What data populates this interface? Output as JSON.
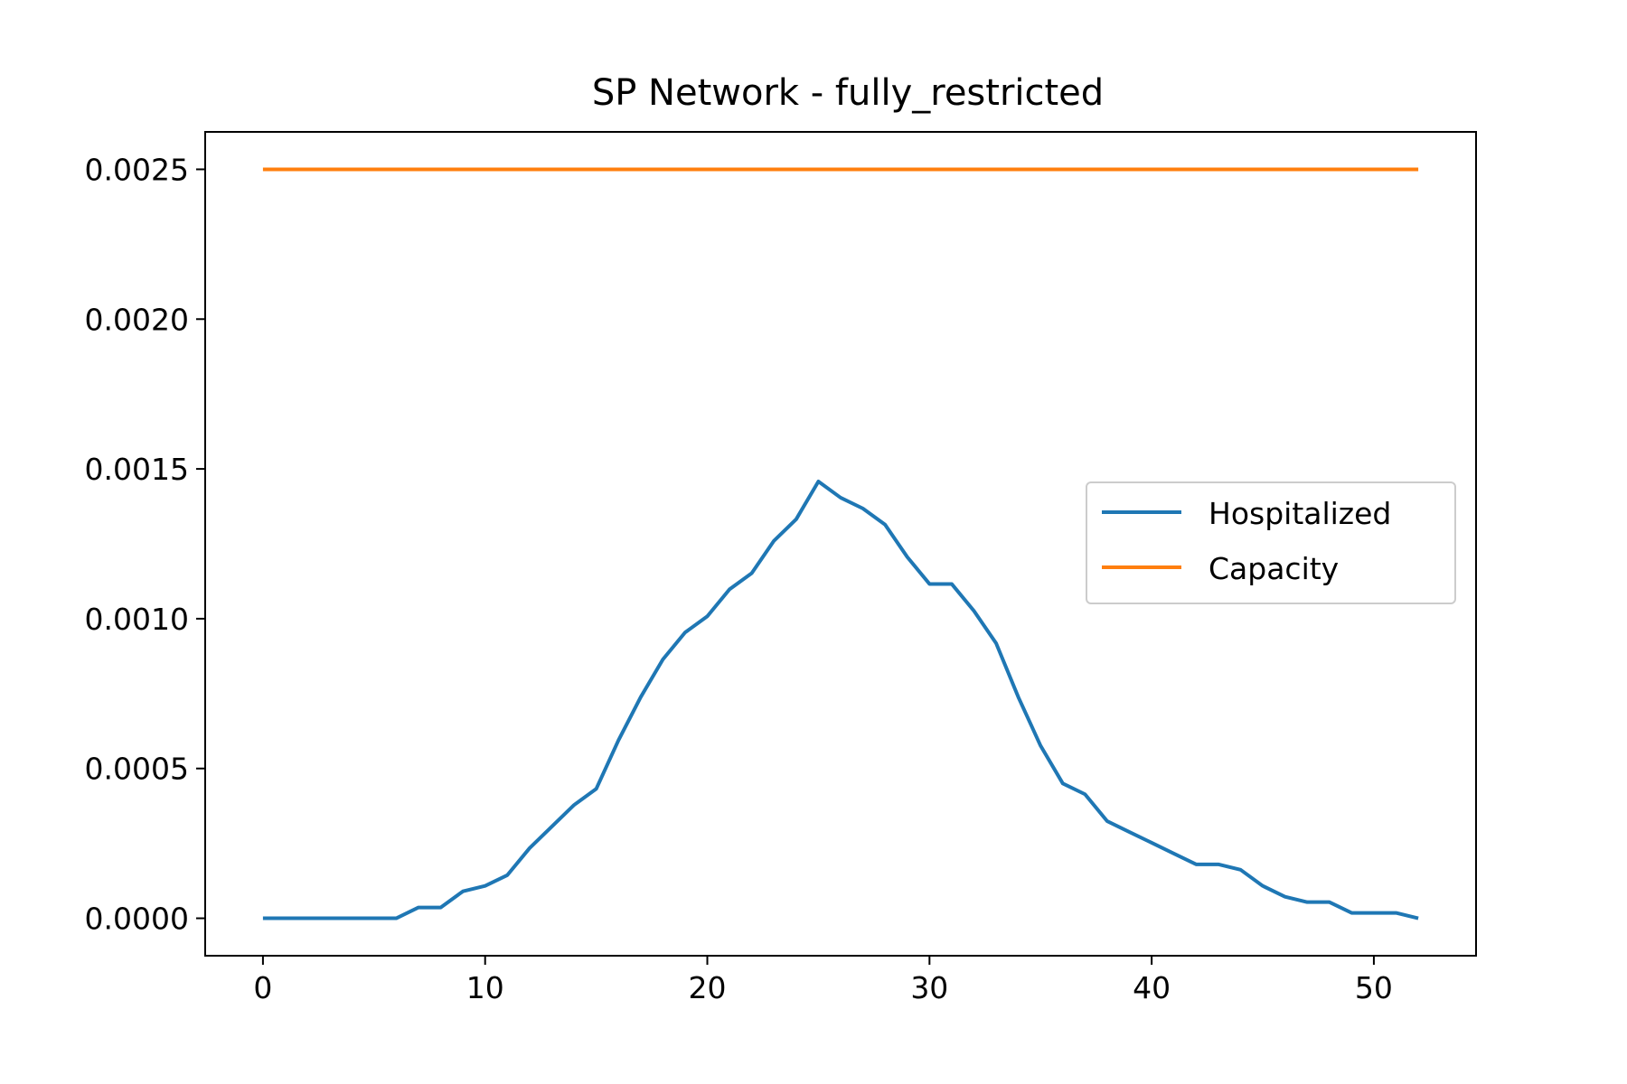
{
  "chart_data": {
    "type": "line",
    "title": "SP Network - fully_restricted",
    "xlabel": "",
    "ylabel": "",
    "xlim": [
      -2.6,
      54.6
    ],
    "ylim": [
      -0.000125,
      0.002625
    ],
    "x_ticks": [
      0,
      10,
      20,
      30,
      40,
      50
    ],
    "x_tick_labels": [
      "0",
      "10",
      "20",
      "30",
      "40",
      "50"
    ],
    "y_ticks": [
      0,
      0.0005,
      0.001,
      0.0015,
      0.002,
      0.0025
    ],
    "y_tick_labels": [
      "0.0000",
      "0.0005",
      "0.0010",
      "0.0015",
      "0.0020",
      "0.0025"
    ],
    "grid": false,
    "legend_position": "center-right",
    "x": [
      0,
      1,
      2,
      3,
      4,
      5,
      6,
      7,
      8,
      9,
      10,
      11,
      12,
      13,
      14,
      15,
      16,
      17,
      18,
      19,
      20,
      21,
      22,
      23,
      24,
      25,
      26,
      27,
      28,
      29,
      30,
      31,
      32,
      33,
      34,
      35,
      36,
      37,
      38,
      39,
      40,
      41,
      42,
      43,
      44,
      45,
      46,
      47,
      48,
      49,
      50,
      51,
      52
    ],
    "series": [
      {
        "name": "Hospitalized",
        "color": "#1f77b4",
        "values": [
          0,
          0,
          0,
          0,
          0,
          0,
          0,
          3.6e-05,
          3.6e-05,
          9e-05,
          0.000108,
          0.000144,
          0.000234,
          0.000306,
          0.000378,
          0.000432,
          0.000594,
          0.000738,
          0.000864,
          0.000954,
          0.001008,
          0.001098,
          0.001152,
          0.00126,
          0.001332,
          0.001458,
          0.001404,
          0.001368,
          0.001314,
          0.001206,
          0.001116,
          0.001116,
          0.001026,
          0.000918,
          0.000738,
          0.000576,
          0.00045,
          0.000414,
          0.000324,
          0.000288,
          0.000252,
          0.000216,
          0.00018,
          0.00018,
          0.000162,
          0.000108,
          7.2e-05,
          5.4e-05,
          5.4e-05,
          1.8e-05,
          1.8e-05,
          1.8e-05,
          0
        ]
      },
      {
        "name": "Capacity",
        "color": "#ff7f0e",
        "values": [
          0.0025,
          0.0025,
          0.0025,
          0.0025,
          0.0025,
          0.0025,
          0.0025,
          0.0025,
          0.0025,
          0.0025,
          0.0025,
          0.0025,
          0.0025,
          0.0025,
          0.0025,
          0.0025,
          0.0025,
          0.0025,
          0.0025,
          0.0025,
          0.0025,
          0.0025,
          0.0025,
          0.0025,
          0.0025,
          0.0025,
          0.0025,
          0.0025,
          0.0025,
          0.0025,
          0.0025,
          0.0025,
          0.0025,
          0.0025,
          0.0025,
          0.0025,
          0.0025,
          0.0025,
          0.0025,
          0.0025,
          0.0025,
          0.0025,
          0.0025,
          0.0025,
          0.0025,
          0.0025,
          0.0025,
          0.0025,
          0.0025,
          0.0025,
          0.0025,
          0.0025,
          0.0025
        ]
      }
    ]
  }
}
